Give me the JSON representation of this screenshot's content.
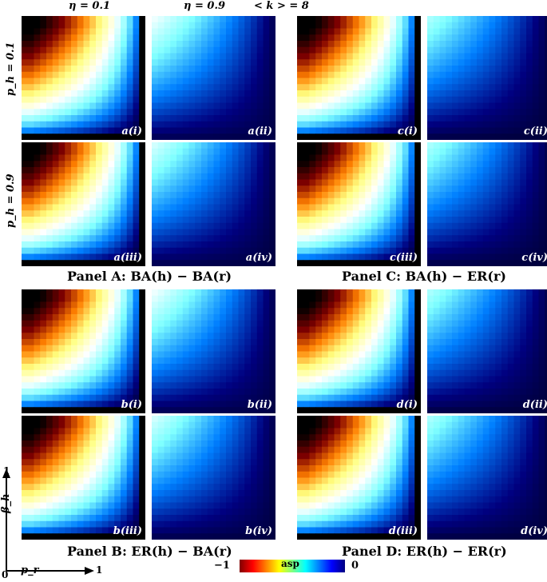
{
  "header": {
    "eta_low": "η = 0.1",
    "eta_high": "η = 0.9",
    "mean_degree": "< k > = 8"
  },
  "rows": {
    "ph_low": "p_h = 0.1",
    "ph_high": "p_h = 0.9"
  },
  "panels": [
    {
      "key": "A",
      "title": "Panel A: BA(h) − BA(r)",
      "labels": [
        "a(i)",
        "a(ii)",
        "a(iii)",
        "a(iv)"
      ]
    },
    {
      "key": "C",
      "title": "Panel C: BA(h) − ER(r)",
      "labels": [
        "c(i)",
        "c(ii)",
        "c(iii)",
        "c(iv)"
      ]
    },
    {
      "key": "B",
      "title": "Panel B: ER(h) − BA(r)",
      "labels": [
        "b(i)",
        "b(ii)",
        "b(iii)",
        "b(iv)"
      ]
    },
    {
      "key": "D",
      "title": "Panel D: ER(h) − ER(r)",
      "labels": [
        "d(i)",
        "d(ii)",
        "d(iii)",
        "d(iv)"
      ]
    }
  ],
  "axes": {
    "x_label": "p_r",
    "y_label": "β_h",
    "origin": "0",
    "x_max": "1",
    "y_max": "1"
  },
  "colorbar": {
    "label": "asp",
    "min_label": "−1",
    "max_label": "0",
    "colormap": "jet"
  },
  "chart_data": {
    "type": "heatmap",
    "xlabel": "p_r",
    "ylabel": "β_h",
    "xlim": [
      0,
      1
    ],
    "ylim": [
      0,
      1
    ],
    "grid_size": 20,
    "value_range": [
      -1,
      0
    ],
    "colorbar_label": "asp",
    "subplots": [
      {
        "label": "a(i)",
        "eta": 0.1,
        "p_h": 0.1,
        "peak": -1.0,
        "sharpness": 5.0,
        "pattern": "strong"
      },
      {
        "label": "a(ii)",
        "eta": 0.9,
        "p_h": 0.1,
        "peak": -0.45,
        "sharpness": 1.2,
        "pattern": "weak"
      },
      {
        "label": "a(iii)",
        "eta": 0.1,
        "p_h": 0.9,
        "peak": -1.0,
        "sharpness": 3.5,
        "pattern": "strong"
      },
      {
        "label": "a(iv)",
        "eta": 0.9,
        "p_h": 0.9,
        "peak": -0.42,
        "sharpness": 1.2,
        "pattern": "weak"
      },
      {
        "label": "c(i)",
        "eta": 0.1,
        "p_h": 0.1,
        "peak": -1.0,
        "sharpness": 5.0,
        "pattern": "strong"
      },
      {
        "label": "c(ii)",
        "eta": 0.9,
        "p_h": 0.1,
        "peak": -0.38,
        "sharpness": 1.1,
        "pattern": "weak"
      },
      {
        "label": "c(iii)",
        "eta": 0.1,
        "p_h": 0.9,
        "peak": -1.0,
        "sharpness": 3.5,
        "pattern": "strong"
      },
      {
        "label": "c(iv)",
        "eta": 0.9,
        "p_h": 0.9,
        "peak": -0.38,
        "sharpness": 1.1,
        "pattern": "weak"
      },
      {
        "label": "b(i)",
        "eta": 0.1,
        "p_h": 0.1,
        "peak": -1.0,
        "sharpness": 5.0,
        "pattern": "strong"
      },
      {
        "label": "b(ii)",
        "eta": 0.9,
        "p_h": 0.1,
        "peak": -0.45,
        "sharpness": 1.2,
        "pattern": "weak"
      },
      {
        "label": "b(iii)",
        "eta": 0.1,
        "p_h": 0.9,
        "peak": -1.0,
        "sharpness": 3.5,
        "pattern": "strong"
      },
      {
        "label": "b(iv)",
        "eta": 0.9,
        "p_h": 0.9,
        "peak": -0.42,
        "sharpness": 1.2,
        "pattern": "weak"
      },
      {
        "label": "d(i)",
        "eta": 0.1,
        "p_h": 0.1,
        "peak": -1.0,
        "sharpness": 5.0,
        "pattern": "strong"
      },
      {
        "label": "d(ii)",
        "eta": 0.9,
        "p_h": 0.1,
        "peak": -0.38,
        "sharpness": 1.1,
        "pattern": "weak"
      },
      {
        "label": "d(iii)",
        "eta": 0.1,
        "p_h": 0.9,
        "peak": -1.0,
        "sharpness": 3.5,
        "pattern": "strong"
      },
      {
        "label": "d(iv)",
        "eta": 0.9,
        "p_h": 0.9,
        "peak": -0.38,
        "sharpness": 1.1,
        "pattern": "weak"
      }
    ]
  }
}
